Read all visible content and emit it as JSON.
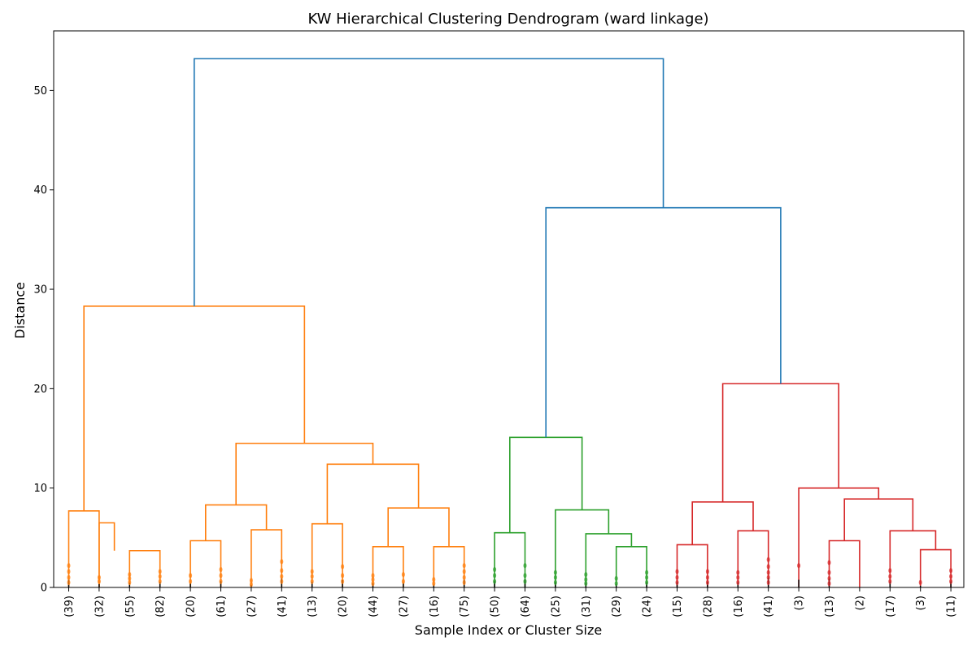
{
  "chart_data": {
    "type": "dendrogram",
    "title": "KW Hierarchical Clustering Dendrogram (ward linkage)",
    "xlabel": "Sample Index or Cluster Size",
    "ylabel": "Distance",
    "ylim": [
      0,
      56
    ],
    "yticks": [
      0,
      10,
      20,
      30,
      40,
      50
    ],
    "grid": false,
    "leaf_labels": [
      "(39)",
      "(32)",
      "(55)",
      "(82)",
      "(20)",
      "(61)",
      "(27)",
      "(41)",
      "(13)",
      "(20)",
      "(44)",
      "(27)",
      "(16)",
      "(75)",
      "(50)",
      "(64)",
      "(25)",
      "(31)",
      "(29)",
      "(24)",
      "(15)",
      "(28)",
      "(16)",
      "(41)",
      "(3)",
      "(13)",
      "(2)",
      "(17)",
      "(3)",
      "(11)"
    ],
    "colors": {
      "above_threshold": "#1f77b4",
      "cluster_1": "#ff7f0e",
      "cluster_2": "#2ca02c",
      "cluster_3": "#d62728"
    },
    "merges": [
      {
        "pos": [
          0.0,
          0.0,
          1.0,
          1.0
        ],
        "height": [
          0.0,
          7.7,
          7.7,
          0.0
        ],
        "color": "cluster_1"
      },
      {
        "pos": [
          1.0,
          1.0,
          1.5,
          1.5
        ],
        "height": [
          0.0,
          6.5,
          6.5,
          3.7
        ],
        "color": "cluster_1"
      },
      {
        "pos": [
          2.0,
          2.0,
          3.0,
          3.0
        ],
        "height": [
          0.0,
          3.7,
          3.7,
          0.0
        ],
        "color": "cluster_1"
      },
      {
        "pos": [
          4.0,
          4.0,
          5.0,
          5.0
        ],
        "height": [
          0.0,
          4.7,
          4.7,
          0.0
        ],
        "color": "cluster_1"
      },
      {
        "pos": [
          6.0,
          6.0,
          7.0,
          7.0
        ],
        "height": [
          0.0,
          5.8,
          5.8,
          0.0
        ],
        "color": "cluster_1"
      },
      {
        "pos": [
          4.5,
          4.5,
          6.5,
          6.5
        ],
        "height": [
          4.7,
          8.3,
          8.3,
          5.8
        ],
        "color": "cluster_1"
      },
      {
        "pos": [
          8.0,
          8.0,
          9.0,
          9.0
        ],
        "height": [
          0.0,
          6.4,
          6.4,
          0.0
        ],
        "color": "cluster_1"
      },
      {
        "pos": [
          10.0,
          10.0,
          11.0,
          11.0
        ],
        "height": [
          0.0,
          4.1,
          4.1,
          0.0
        ],
        "color": "cluster_1"
      },
      {
        "pos": [
          12.0,
          12.0,
          13.0,
          13.0
        ],
        "height": [
          0.0,
          4.1,
          4.1,
          0.0
        ],
        "color": "cluster_1"
      },
      {
        "pos": [
          10.5,
          10.5,
          12.5,
          12.5
        ],
        "height": [
          4.1,
          8.0,
          8.0,
          4.1
        ],
        "color": "cluster_1"
      },
      {
        "pos": [
          8.5,
          8.5,
          11.5,
          11.5
        ],
        "height": [
          6.4,
          12.4,
          12.4,
          8.0
        ],
        "color": "cluster_1"
      },
      {
        "pos": [
          5.5,
          5.5,
          10.0,
          10.0
        ],
        "height": [
          8.3,
          14.5,
          14.5,
          12.4
        ],
        "color": "cluster_1"
      },
      {
        "pos": [
          0.5,
          0.5,
          7.75,
          7.75
        ],
        "height": [
          7.7,
          28.3,
          28.3,
          14.5
        ],
        "color": "cluster_1"
      },
      {
        "pos": [
          14.0,
          14.0,
          15.0,
          15.0
        ],
        "height": [
          0.0,
          5.5,
          5.5,
          0.0
        ],
        "color": "cluster_2"
      },
      {
        "pos": [
          18.0,
          18.0,
          19.0,
          19.0
        ],
        "height": [
          0.0,
          4.1,
          4.1,
          0.0
        ],
        "color": "cluster_2"
      },
      {
        "pos": [
          17.0,
          17.0,
          18.5,
          18.5
        ],
        "height": [
          0.0,
          5.4,
          5.4,
          4.1
        ],
        "color": "cluster_2"
      },
      {
        "pos": [
          16.0,
          16.0,
          17.75,
          17.75
        ],
        "height": [
          0.0,
          7.8,
          7.8,
          5.4
        ],
        "color": "cluster_2"
      },
      {
        "pos": [
          14.5,
          14.5,
          16.875,
          16.875
        ],
        "height": [
          5.5,
          15.1,
          15.1,
          7.8
        ],
        "color": "cluster_2"
      },
      {
        "pos": [
          20.0,
          20.0,
          21.0,
          21.0
        ],
        "height": [
          0.0,
          4.3,
          4.3,
          0.0
        ],
        "color": "cluster_3"
      },
      {
        "pos": [
          22.0,
          22.0,
          23.0,
          23.0
        ],
        "height": [
          0.0,
          5.7,
          5.7,
          0.0
        ],
        "color": "cluster_3"
      },
      {
        "pos": [
          20.5,
          20.5,
          22.5,
          22.5
        ],
        "height": [
          4.3,
          8.6,
          8.6,
          5.7
        ],
        "color": "cluster_3"
      },
      {
        "pos": [
          25.0,
          25.0,
          26.0,
          26.0
        ],
        "height": [
          0.0,
          4.7,
          4.7,
          0.0
        ],
        "color": "cluster_3"
      },
      {
        "pos": [
          28.0,
          28.0,
          29.0,
          29.0
        ],
        "height": [
          0.0,
          3.8,
          3.8,
          0.0
        ],
        "color": "cluster_3"
      },
      {
        "pos": [
          27.0,
          27.0,
          28.5,
          28.5
        ],
        "height": [
          0.0,
          5.7,
          5.7,
          3.8
        ],
        "color": "cluster_3"
      },
      {
        "pos": [
          25.5,
          25.5,
          27.75,
          27.75
        ],
        "height": [
          4.7,
          8.9,
          8.9,
          5.7
        ],
        "color": "cluster_3"
      },
      {
        "pos": [
          24.0,
          24.0,
          26.625,
          26.625
        ],
        "height": [
          0.0,
          10.0,
          10.0,
          8.9
        ],
        "color": "cluster_3"
      },
      {
        "pos": [
          21.5,
          21.5,
          25.3125,
          25.3125
        ],
        "height": [
          8.6,
          20.5,
          20.5,
          10.0
        ],
        "color": "cluster_3"
      },
      {
        "pos": [
          15.6875,
          15.6875,
          23.40625,
          23.40625
        ],
        "height": [
          15.1,
          38.2,
          38.2,
          20.5
        ],
        "color": "above_threshold"
      },
      {
        "pos": [
          4.125,
          4.125,
          19.546875,
          19.546875
        ],
        "height": [
          28.3,
          53.2,
          53.2,
          38.2
        ],
        "color": "above_threshold"
      }
    ],
    "leaf_points": [
      {
        "leaf": 0,
        "heights": [
          0.5,
          1.0,
          1.6,
          2.2
        ],
        "color": "cluster_1"
      },
      {
        "leaf": 1,
        "heights": [
          0.6,
          1.0
        ],
        "color": "cluster_1"
      },
      {
        "leaf": 2,
        "heights": [
          0.5,
          0.9,
          1.3
        ],
        "color": "cluster_1"
      },
      {
        "leaf": 3,
        "heights": [
          0.6,
          1.1,
          1.6
        ],
        "color": "cluster_1"
      },
      {
        "leaf": 4,
        "heights": [
          0.6,
          1.2
        ],
        "color": "cluster_1"
      },
      {
        "leaf": 5,
        "heights": [
          0.6,
          1.2,
          1.8
        ],
        "color": "cluster_1"
      },
      {
        "leaf": 6,
        "heights": [
          0.3,
          0.7
        ],
        "color": "cluster_1"
      },
      {
        "leaf": 7,
        "heights": [
          0.6,
          1.1,
          1.7,
          2.6
        ],
        "color": "cluster_1"
      },
      {
        "leaf": 8,
        "heights": [
          0.6,
          1.1,
          1.6
        ],
        "color": "cluster_1"
      },
      {
        "leaf": 9,
        "heights": [
          0.6,
          1.2,
          2.1
        ],
        "color": "cluster_1"
      },
      {
        "leaf": 10,
        "heights": [
          0.4,
          0.8,
          1.2
        ],
        "color": "cluster_1"
      },
      {
        "leaf": 11,
        "heights": [
          0.6,
          1.3
        ],
        "color": "cluster_1"
      },
      {
        "leaf": 12,
        "heights": [
          0.4,
          0.8
        ],
        "color": "cluster_1"
      },
      {
        "leaf": 13,
        "heights": [
          0.5,
          1.0,
          1.6,
          2.2
        ],
        "color": "cluster_1"
      },
      {
        "leaf": 14,
        "heights": [
          0.6,
          1.2,
          1.8
        ],
        "color": "cluster_2"
      },
      {
        "leaf": 15,
        "heights": [
          0.6,
          1.2,
          2.2
        ],
        "color": "cluster_2"
      },
      {
        "leaf": 16,
        "heights": [
          0.5,
          1.0,
          1.5
        ],
        "color": "cluster_2"
      },
      {
        "leaf": 17,
        "heights": [
          0.4,
          0.8,
          1.3
        ],
        "color": "cluster_2"
      },
      {
        "leaf": 18,
        "heights": [
          0.4,
          0.9
        ],
        "color": "cluster_2"
      },
      {
        "leaf": 19,
        "heights": [
          0.5,
          1.0,
          1.5
        ],
        "color": "cluster_2"
      },
      {
        "leaf": 20,
        "heights": [
          0.5,
          1.0,
          1.6
        ],
        "color": "cluster_3"
      },
      {
        "leaf": 21,
        "heights": [
          0.5,
          1.0,
          1.6
        ],
        "color": "cluster_3"
      },
      {
        "leaf": 22,
        "heights": [
          0.5,
          1.0,
          1.5
        ],
        "color": "cluster_3"
      },
      {
        "leaf": 23,
        "heights": [
          0.5,
          1.0,
          1.5,
          2.1,
          2.8
        ],
        "color": "cluster_3"
      },
      {
        "leaf": 24,
        "heights": [
          2.2
        ],
        "color": "cluster_3"
      },
      {
        "leaf": 25,
        "heights": [
          0.4,
          0.9,
          1.5,
          2.5
        ],
        "color": "cluster_3"
      },
      {
        "leaf": 27,
        "heights": [
          0.6,
          1.1,
          1.7
        ],
        "color": "cluster_3"
      },
      {
        "leaf": 28,
        "heights": [
          0.5
        ],
        "color": "cluster_3"
      },
      {
        "leaf": 29,
        "heights": [
          0.6,
          1.1,
          1.7
        ],
        "color": "cluster_3"
      }
    ]
  }
}
